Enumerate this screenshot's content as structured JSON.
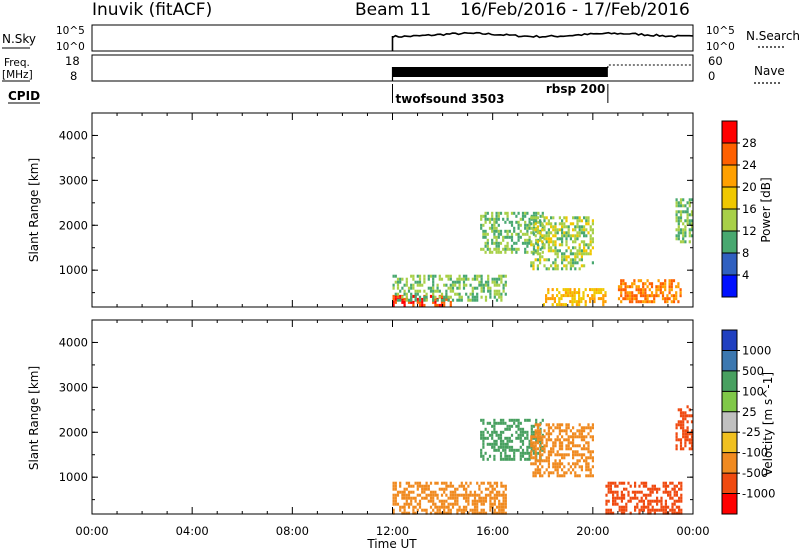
{
  "header": {
    "station": "Inuvik (fitACF)",
    "beam": "Beam 11",
    "dates": "16/Feb/2016 - 17/Feb/2016"
  },
  "ticks": {
    "times": [
      "00:00",
      "04:00",
      "08:00",
      "12:00",
      "16:00",
      "20:00",
      "00:00"
    ],
    "x_title": "Time UT",
    "range": [
      "1000",
      "2000",
      "3000",
      "4000"
    ]
  },
  "nsky_panel": {
    "label": "N.Sky",
    "left_ticks": [
      "10^5",
      "10^0"
    ],
    "right_ticks": [
      "10^5",
      "10^0"
    ],
    "right_label": "N.Search",
    "data_start_hour": 12
  },
  "freq_panel": {
    "label_line1": "Freq.",
    "label_line2": "[MHz]",
    "left_ticks": [
      "18",
      "8"
    ],
    "right_ticks": [
      "60",
      "0"
    ],
    "right_label": "Nave",
    "data_start_hour": 12,
    "freq_end_hour": 20.6
  },
  "cpid_panel": {
    "label": "CPID",
    "programs": [
      {
        "name": "twofsound 3503",
        "start_hour": 12.0
      },
      {
        "name": "rbsp 200",
        "start_hour": 20.6
      }
    ]
  },
  "power_panel": {
    "ylabel": "Slant Range [km]",
    "colorbar_label": "Power [dB]",
    "colorbar_ticks": [
      "28",
      "24",
      "20",
      "16",
      "12",
      "8",
      "4"
    ],
    "colorbar_colors": [
      "#ff0000",
      "#ff6000",
      "#ffa000",
      "#f0c800",
      "#a8d048",
      "#48a870",
      "#3060c0",
      "#0010ff"
    ]
  },
  "velocity_panel": {
    "ylabel": "Slant Range [km]",
    "colorbar_label": "Velocity [m s^-1]",
    "colorbar_ticks": [
      "1000",
      "500",
      "100",
      "25",
      "-25",
      "-100",
      "-500",
      "-1000"
    ],
    "colorbar_colors": [
      "#2040c0",
      "#3c78b0",
      "#48a060",
      "#80c848",
      "#c0c0c0",
      "#f0c020",
      "#f08a20",
      "#f04a10",
      "#ff0000"
    ]
  },
  "chart_data": {
    "type": "heatmap",
    "x_unit": "hours UT from 00:00 16/Feb/2016",
    "xlim": [
      0,
      24
    ],
    "ylim": [
      180,
      4500
    ],
    "power_blocks": [
      {
        "t0": 12.0,
        "t1": 14.5,
        "r0": 200,
        "r1": 450,
        "level": 28
      },
      {
        "t0": 12.0,
        "t1": 16.5,
        "r0": 300,
        "r1": 900,
        "level": 12
      },
      {
        "t0": 15.5,
        "t1": 18.0,
        "r0": 1400,
        "r1": 2300,
        "level": 12
      },
      {
        "t0": 17.5,
        "t1": 20.0,
        "r0": 1000,
        "r1": 2200,
        "level": 14
      },
      {
        "t0": 18.0,
        "t1": 20.5,
        "r0": 200,
        "r1": 600,
        "level": 20
      },
      {
        "t0": 21.0,
        "t1": 23.5,
        "r0": 300,
        "r1": 800,
        "level": 24
      },
      {
        "t0": 23.3,
        "t1": 24.0,
        "r0": 1600,
        "r1": 2600,
        "level": 12
      }
    ],
    "velocity_blocks": [
      {
        "t0": 12.0,
        "t1": 16.5,
        "r0": 200,
        "r1": 900,
        "level": -100
      },
      {
        "t0": 15.5,
        "t1": 18.0,
        "r0": 1400,
        "r1": 2300,
        "level": 100
      },
      {
        "t0": 17.5,
        "t1": 20.0,
        "r0": 1000,
        "r1": 2200,
        "level": -100
      },
      {
        "t0": 20.5,
        "t1": 23.5,
        "r0": 200,
        "r1": 900,
        "level": -500
      },
      {
        "t0": 23.3,
        "t1": 24.0,
        "r0": 1600,
        "r1": 2600,
        "level": -500
      }
    ]
  }
}
